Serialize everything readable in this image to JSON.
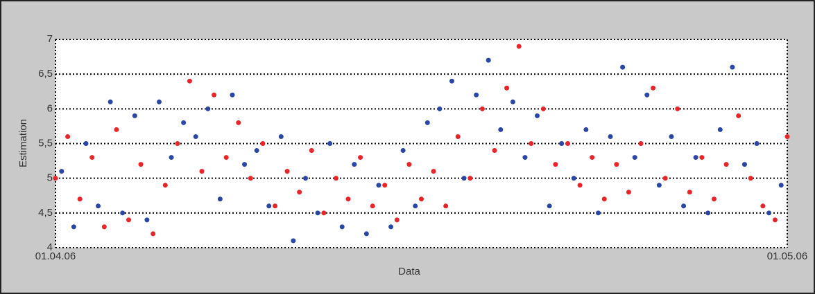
{
  "chart_data": {
    "type": "scatter",
    "xlabel": "Data",
    "ylabel": "Estimation",
    "xlim": [
      0,
      30
    ],
    "xticks": [
      {
        "value": 0,
        "label": "01.04.06"
      },
      {
        "value": 30,
        "label": "01.05.06"
      }
    ],
    "ylim": [
      4,
      7
    ],
    "yticks": [
      4,
      {
        "value": 4.5,
        "label": "4,5"
      },
      5,
      {
        "value": 5.5,
        "label": "5,5"
      },
      6,
      {
        "value": 6.5,
        "label": "6,5"
      },
      7
    ],
    "grid": true,
    "series": [
      {
        "color": "#2b47a6",
        "x": [
          0.25,
          0.75,
          1.25,
          1.75,
          2.25,
          2.75,
          3.25,
          3.75,
          4.25,
          4.75,
          5.25,
          5.75,
          6.25,
          6.75,
          7.25,
          7.75,
          8.25,
          8.75,
          9.25,
          9.75,
          10.25,
          10.75,
          11.25,
          11.75,
          12.25,
          12.75,
          13.25,
          13.75,
          14.25,
          14.75,
          15.25,
          15.75,
          16.25,
          16.75,
          17.25,
          17.75,
          18.25,
          18.75,
          19.25,
          19.75,
          20.25,
          20.75,
          21.25,
          21.75,
          22.25,
          22.75,
          23.25,
          23.75,
          24.25,
          24.75,
          25.25,
          25.75,
          26.25,
          26.75,
          27.25,
          27.75,
          28.25,
          28.75,
          29.25,
          29.75
        ],
        "values": [
          5.1,
          4.3,
          5.5,
          4.6,
          6.1,
          4.5,
          5.9,
          4.4,
          6.1,
          5.3,
          5.8,
          5.6,
          6.0,
          4.7,
          6.2,
          5.2,
          5.4,
          4.6,
          5.6,
          4.1,
          5.0,
          4.5,
          5.5,
          4.3,
          5.2,
          4.2,
          4.9,
          4.3,
          5.4,
          4.6,
          5.8,
          6.0,
          6.4,
          5.0,
          6.2,
          6.7,
          5.7,
          6.1,
          5.3,
          5.9,
          4.6,
          5.5,
          5.0,
          5.7,
          4.5,
          5.6,
          6.6,
          5.3,
          6.2,
          4.9,
          5.6,
          4.6,
          5.3,
          4.5,
          5.7,
          6.6,
          5.2,
          5.5,
          4.5,
          4.9
        ]
      },
      {
        "color": "#e8262a",
        "x": [
          0,
          0.5,
          1,
          1.5,
          2,
          2.5,
          3,
          3.5,
          4,
          4.5,
          5,
          5.5,
          6,
          6.5,
          7,
          7.5,
          8,
          8.5,
          9,
          9.5,
          10,
          10.5,
          11,
          11.5,
          12,
          12.5,
          13,
          13.5,
          14,
          14.5,
          15,
          15.5,
          16,
          16.5,
          17,
          17.5,
          18,
          18.5,
          19,
          19.5,
          20,
          20.5,
          21,
          21.5,
          22,
          22.5,
          23,
          23.5,
          24,
          24.5,
          25,
          25.5,
          26,
          26.5,
          27,
          27.5,
          28,
          28.5,
          29,
          29.5,
          30
        ],
        "values": [
          5.0,
          5.6,
          4.7,
          5.3,
          4.3,
          5.7,
          4.4,
          5.2,
          4.2,
          4.9,
          5.5,
          6.4,
          5.1,
          6.2,
          5.3,
          5.8,
          5.0,
          5.5,
          4.6,
          5.1,
          4.8,
          5.4,
          4.5,
          5.0,
          4.7,
          5.3,
          4.6,
          4.9,
          4.4,
          5.2,
          4.7,
          5.1,
          4.6,
          5.6,
          5.0,
          6.0,
          5.4,
          6.3,
          6.9,
          5.5,
          6.0,
          5.2,
          5.5,
          4.9,
          5.3,
          4.7,
          5.2,
          4.8,
          5.5,
          6.3,
          5.0,
          6.0,
          4.8,
          5.3,
          4.7,
          5.2,
          5.9,
          5.0,
          4.6,
          4.4,
          5.6
        ]
      }
    ]
  }
}
